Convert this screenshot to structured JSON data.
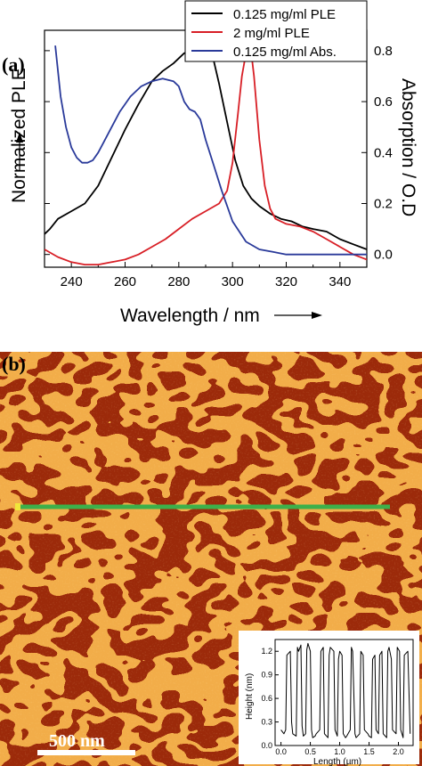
{
  "panel_a": {
    "label": "(a)",
    "chart_data": {
      "type": "line",
      "xlabel": "Wavelength / nm",
      "ylabel_left": "Normalized PLE",
      "ylabel_right": "Absorption / O.D",
      "xlim": [
        230,
        350
      ],
      "ylim_right": [
        -0.05,
        0.88
      ],
      "xticks": [
        240,
        260,
        280,
        300,
        320,
        340
      ],
      "yticks_right": [
        "0.0",
        "0.2",
        "0.4",
        "0.6",
        "0.8"
      ],
      "legend_position": "top-right",
      "series": [
        {
          "name": "0.125 mg/ml PLE",
          "color": "#000000",
          "x": [
            230,
            232,
            235,
            240,
            245,
            250,
            255,
            260,
            265,
            270,
            274,
            278,
            282,
            285,
            288,
            291,
            293,
            295,
            298,
            301,
            304,
            307,
            310,
            314,
            318,
            322,
            326,
            330,
            335,
            340,
            345,
            350
          ],
          "y": [
            0.08,
            0.1,
            0.14,
            0.17,
            0.2,
            0.27,
            0.38,
            0.49,
            0.59,
            0.68,
            0.72,
            0.75,
            0.79,
            0.8,
            0.8,
            0.8,
            0.76,
            0.67,
            0.52,
            0.37,
            0.27,
            0.22,
            0.19,
            0.16,
            0.14,
            0.13,
            0.11,
            0.1,
            0.09,
            0.06,
            0.04,
            0.02
          ]
        },
        {
          "name": "2 mg/ml PLE",
          "color": "#d81f26",
          "x": [
            230,
            235,
            240,
            245,
            250,
            255,
            260,
            265,
            270,
            275,
            280,
            285,
            290,
            295,
            298,
            300,
            302,
            303.5,
            305,
            306,
            307,
            308,
            310,
            312,
            314,
            316,
            320,
            325,
            330,
            335,
            340,
            345,
            350
          ],
          "y": [
            0.02,
            -0.01,
            -0.03,
            -0.04,
            -0.04,
            -0.03,
            -0.02,
            0.0,
            0.03,
            0.06,
            0.1,
            0.14,
            0.17,
            0.2,
            0.25,
            0.36,
            0.55,
            0.7,
            0.79,
            0.81,
            0.79,
            0.7,
            0.45,
            0.27,
            0.18,
            0.14,
            0.12,
            0.11,
            0.09,
            0.06,
            0.03,
            0.0,
            -0.02
          ]
        },
        {
          "name": "0.125 mg/ml Abs.",
          "color": "#2a3a9a",
          "x": [
            234,
            236,
            238,
            240,
            242,
            244,
            246,
            248,
            250,
            252,
            255,
            258,
            262,
            266,
            270,
            274,
            278,
            280,
            282,
            284,
            286,
            288,
            290,
            293,
            296,
            300,
            305,
            310,
            315,
            320,
            330,
            340,
            350
          ],
          "y": [
            0.82,
            0.62,
            0.5,
            0.42,
            0.38,
            0.36,
            0.36,
            0.37,
            0.4,
            0.44,
            0.5,
            0.56,
            0.62,
            0.66,
            0.68,
            0.69,
            0.68,
            0.66,
            0.6,
            0.57,
            0.56,
            0.53,
            0.45,
            0.35,
            0.25,
            0.13,
            0.05,
            0.02,
            0.01,
            0.0,
            0.0,
            0.0,
            0.0
          ]
        }
      ]
    }
  },
  "panel_b": {
    "label": "(b)",
    "scale_bar": "500 nm",
    "profile_line_color": "#3db04a",
    "inset": {
      "chart_data": {
        "type": "line",
        "xlabel": "Length (µm)",
        "ylabel": "Height (nm)",
        "xlim": [
          -0.1,
          2.25
        ],
        "ylim": [
          0.0,
          1.35
        ],
        "xticks": [
          "0.0",
          "0.5",
          "1.0",
          "1.5",
          "2.0"
        ],
        "yticks": [
          "0.0",
          "0.3",
          "0.6",
          "0.9",
          "1.2"
        ],
        "series": [
          {
            "name": "",
            "color": "#000000",
            "x": [
              0.0,
              0.05,
              0.08,
              0.1,
              0.16,
              0.18,
              0.2,
              0.26,
              0.28,
              0.3,
              0.34,
              0.36,
              0.38,
              0.42,
              0.44,
              0.46,
              0.5,
              0.52,
              0.54,
              0.58,
              0.6,
              0.66,
              0.68,
              0.72,
              0.74,
              0.8,
              0.82,
              0.84,
              0.9,
              0.92,
              0.96,
              0.98,
              1.0,
              1.04,
              1.06,
              1.1,
              1.12,
              1.18,
              1.2,
              1.22,
              1.26,
              1.28,
              1.34,
              1.36,
              1.4,
              1.42,
              1.48,
              1.5,
              1.54,
              1.56,
              1.6,
              1.62,
              1.66,
              1.68,
              1.72,
              1.74,
              1.8,
              1.82,
              1.84,
              1.88,
              1.9,
              1.96,
              1.98,
              2.02,
              2.04,
              2.08,
              2.1,
              2.16,
              2.2
            ],
            "y": [
              0.2,
              0.15,
              0.2,
              1.15,
              1.2,
              0.3,
              0.15,
              0.12,
              1.25,
              1.2,
              1.28,
              0.25,
              0.12,
              0.15,
              1.22,
              1.3,
              1.2,
              0.2,
              0.1,
              0.12,
              0.15,
              0.2,
              1.2,
              1.25,
              0.15,
              0.1,
              1.15,
              1.25,
              1.2,
              0.2,
              0.12,
              1.1,
              1.2,
              1.15,
              0.15,
              0.1,
              0.12,
              0.2,
              1.25,
              1.2,
              0.15,
              0.1,
              0.15,
              1.2,
              1.15,
              0.2,
              0.15,
              0.12,
              0.1,
              1.1,
              1.15,
              0.2,
              0.15,
              1.15,
              1.2,
              0.15,
              0.1,
              1.2,
              1.25,
              1.1,
              0.2,
              0.15,
              1.25,
              1.2,
              0.2,
              0.1,
              1.15,
              1.2,
              0.15
            ]
          }
        ]
      }
    }
  }
}
